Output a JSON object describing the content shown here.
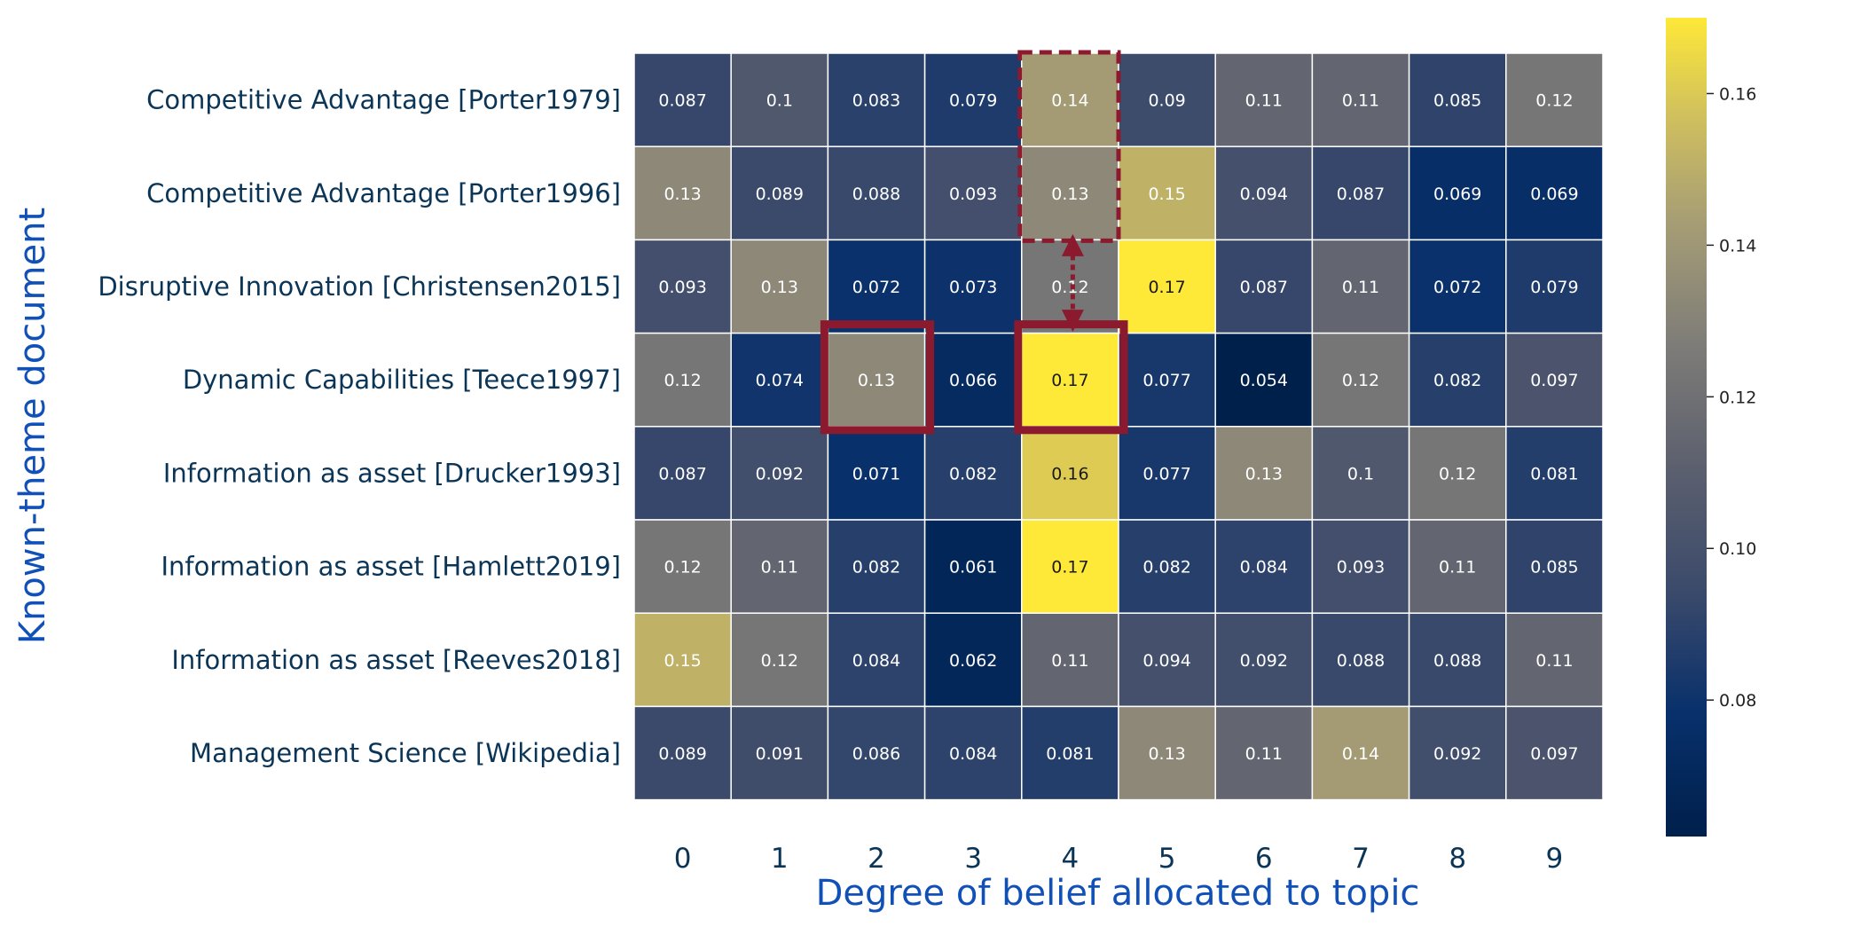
{
  "chart_data": {
    "type": "heatmap",
    "xlabel": "Degree of belief allocated to topic",
    "ylabel": "Known-theme document",
    "columns": [
      "0",
      "1",
      "2",
      "3",
      "4",
      "5",
      "6",
      "7",
      "8",
      "9"
    ],
    "rows": [
      "Competitive Advantage [Porter1979]",
      "Competitive Advantage [Porter1996]",
      "Disruptive Innovation [Christensen2015]",
      "Dynamic Capabilities [Teece1997]",
      "Information as asset [Drucker1993]",
      "Information as asset [Hamlett2019]",
      "Information as asset [Reeves2018]",
      "Management Science [Wikipedia]"
    ],
    "values": [
      [
        0.087,
        0.1,
        0.083,
        0.079,
        0.14,
        0.09,
        0.11,
        0.11,
        0.085,
        0.12
      ],
      [
        0.13,
        0.089,
        0.088,
        0.093,
        0.13,
        0.15,
        0.094,
        0.087,
        0.069,
        0.069
      ],
      [
        0.093,
        0.13,
        0.072,
        0.073,
        0.12,
        0.17,
        0.087,
        0.11,
        0.072,
        0.079
      ],
      [
        0.12,
        0.074,
        0.13,
        0.066,
        0.17,
        0.077,
        0.054,
        0.12,
        0.082,
        0.097
      ],
      [
        0.087,
        0.092,
        0.071,
        0.082,
        0.16,
        0.077,
        0.13,
        0.1,
        0.12,
        0.081
      ],
      [
        0.12,
        0.11,
        0.082,
        0.061,
        0.17,
        0.082,
        0.084,
        0.093,
        0.11,
        0.085
      ],
      [
        0.15,
        0.12,
        0.084,
        0.062,
        0.11,
        0.094,
        0.092,
        0.088,
        0.088,
        0.11
      ],
      [
        0.089,
        0.091,
        0.086,
        0.084,
        0.081,
        0.13,
        0.11,
        0.14,
        0.092,
        0.097
      ]
    ],
    "colormap": "cividis",
    "vmin": 0.054,
    "vmax": 0.17,
    "colorbar_ticks": [
      "0.08",
      "0.10",
      "0.12",
      "0.14",
      "0.16"
    ],
    "grid": true,
    "annotations": [
      {
        "type": "solid-box",
        "row": 3,
        "col": 2,
        "color": "#8b1a2e"
      },
      {
        "type": "solid-box",
        "row": 3,
        "col": 4,
        "color": "#8b1a2e"
      },
      {
        "type": "dashed-box",
        "row_start": 0,
        "row_end": 1,
        "col": 4,
        "color": "#8b1a2e"
      },
      {
        "type": "double-arrow",
        "from_row": 1,
        "to_row": 3,
        "col": 4,
        "color": "#8b1a2e"
      }
    ]
  }
}
